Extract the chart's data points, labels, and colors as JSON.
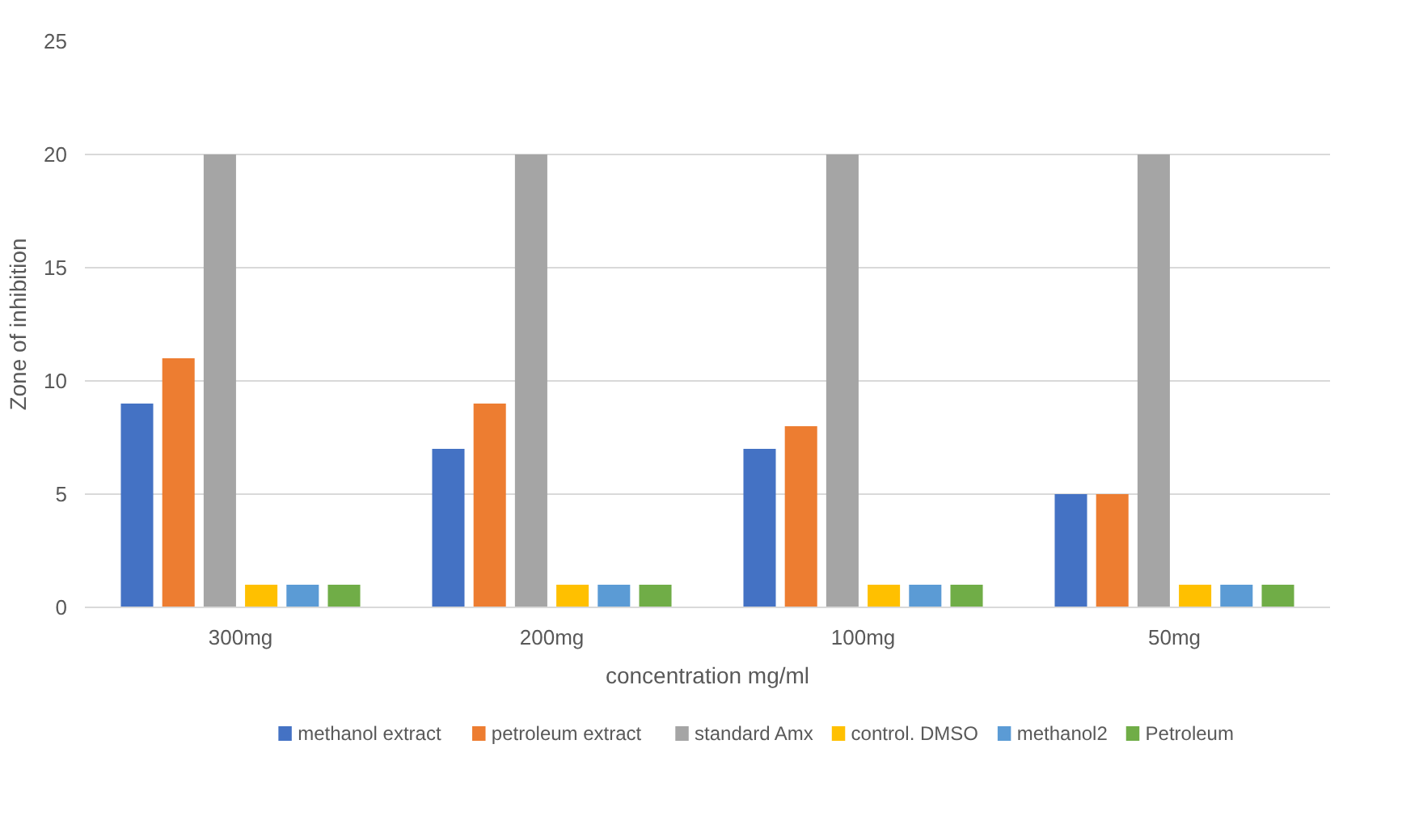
{
  "chart_data": {
    "type": "bar",
    "xlabel": "concentration mg/ml",
    "ylabel": "Zone of inhibition",
    "categories": [
      "300mg",
      "200mg",
      "100mg",
      "50mg"
    ],
    "series": [
      {
        "name": "methanol extract",
        "color": "#4472c4",
        "values": [
          9,
          7,
          7,
          5
        ]
      },
      {
        "name": "petroleum extract",
        "color": "#ed7d31",
        "values": [
          11,
          9,
          8,
          5
        ]
      },
      {
        "name": "standard Amx",
        "color": "#a5a5a5",
        "values": [
          20,
          20,
          20,
          20
        ]
      },
      {
        "name": "control. DMSO",
        "color": "#ffc000",
        "values": [
          1,
          1,
          1,
          1
        ]
      },
      {
        "name": "methanol2",
        "color": "#5b9bd5",
        "values": [
          1,
          1,
          1,
          1
        ]
      },
      {
        "name": "Petroleum",
        "color": "#70ad47",
        "values": [
          1,
          1,
          1,
          1
        ]
      }
    ],
    "ylim": [
      0,
      25
    ],
    "yticks": [
      0,
      5,
      10,
      15,
      20,
      25
    ],
    "grid": "y",
    "legend": "bottom"
  }
}
